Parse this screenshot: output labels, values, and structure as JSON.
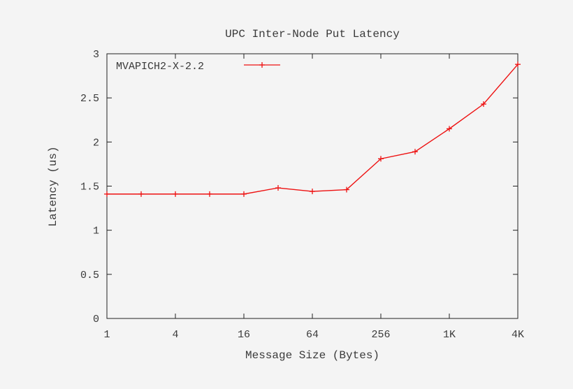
{
  "chart_data": {
    "type": "line",
    "title": "UPC Inter-Node Put Latency",
    "xlabel": "Message Size (Bytes)",
    "ylabel": "Latency (us)",
    "x_scale": "log2",
    "x_ticks": [
      {
        "value": 1,
        "label": "1"
      },
      {
        "value": 4,
        "label": "4"
      },
      {
        "value": 16,
        "label": "16"
      },
      {
        "value": 64,
        "label": "64"
      },
      {
        "value": 256,
        "label": "256"
      },
      {
        "value": 1024,
        "label": "1K"
      },
      {
        "value": 4096,
        "label": "4K"
      }
    ],
    "xlim": [
      1,
      4096
    ],
    "y_ticks": [
      {
        "value": 0,
        "label": "0"
      },
      {
        "value": 0.5,
        "label": "0.5"
      },
      {
        "value": 1,
        "label": "1"
      },
      {
        "value": 1.5,
        "label": "1.5"
      },
      {
        "value": 2,
        "label": "2"
      },
      {
        "value": 2.5,
        "label": "2.5"
      },
      {
        "value": 3,
        "label": "3"
      }
    ],
    "ylim": [
      0,
      3
    ],
    "grid": false,
    "legend_position": "top-left",
    "series": [
      {
        "name": "MVAPICH2-X-2.2",
        "color": "#ee1111",
        "marker": "plus",
        "points": [
          {
            "x": 1,
            "y": 1.41
          },
          {
            "x": 2,
            "y": 1.41
          },
          {
            "x": 4,
            "y": 1.41
          },
          {
            "x": 8,
            "y": 1.41
          },
          {
            "x": 16,
            "y": 1.41
          },
          {
            "x": 32,
            "y": 1.48
          },
          {
            "x": 64,
            "y": 1.44
          },
          {
            "x": 128,
            "y": 1.46
          },
          {
            "x": 256,
            "y": 1.81
          },
          {
            "x": 512,
            "y": 1.89
          },
          {
            "x": 1024,
            "y": 2.15
          },
          {
            "x": 2048,
            "y": 2.43
          },
          {
            "x": 4096,
            "y": 2.88
          }
        ]
      }
    ]
  }
}
